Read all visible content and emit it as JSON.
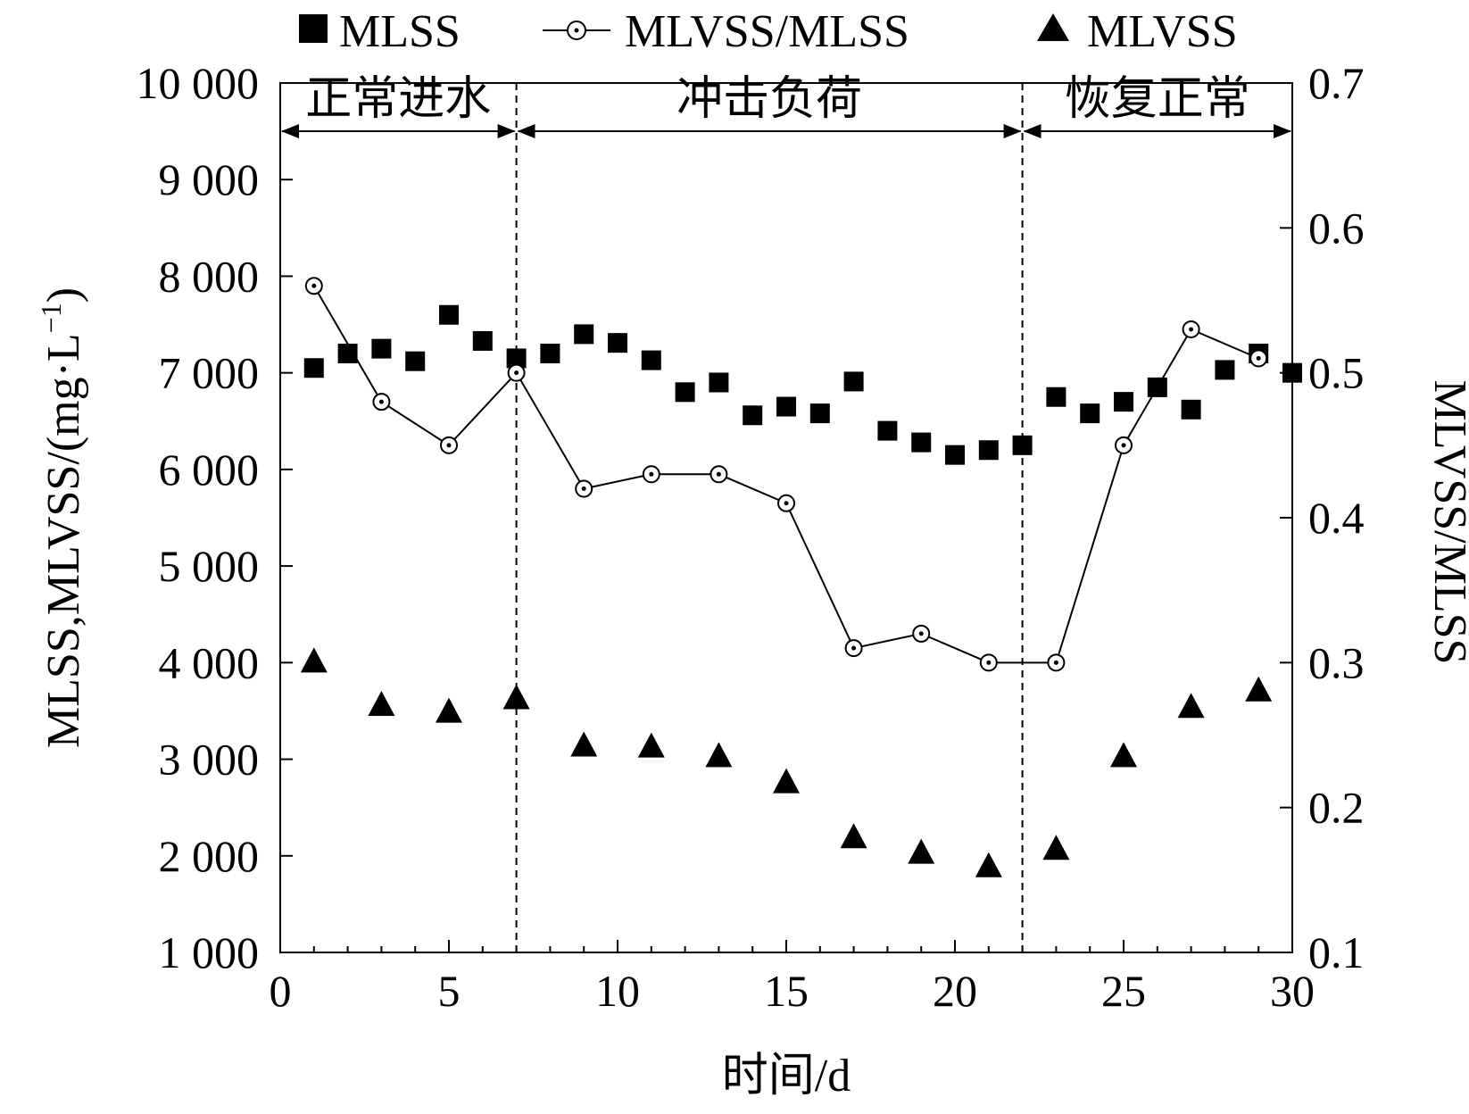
{
  "chart_data": {
    "type": "line",
    "xlabel": "时间/d",
    "ylabel_left": "MLSS,MLVSS/(mg·L",
    "ylabel_left_sup": "−1",
    "ylabel_left_end": ")",
    "ylabel_right": "MLVSS/MLSS",
    "xlim": [
      0,
      30
    ],
    "ylim_left": [
      1000,
      10000
    ],
    "ylim_right": [
      0.1,
      0.7
    ],
    "x_ticks": [
      0,
      5,
      10,
      15,
      20,
      25,
      30
    ],
    "x_tick_labels": [
      "0",
      "5",
      "10",
      "15",
      "20",
      "25",
      "30"
    ],
    "y_left_ticks": [
      1000,
      2000,
      3000,
      4000,
      5000,
      6000,
      7000,
      8000,
      9000,
      10000
    ],
    "y_left_tick_labels": [
      "1 000",
      "2 000",
      "3 000",
      "4 000",
      "5 000",
      "6 000",
      "7 000",
      "8 000",
      "9 000",
      "10 000"
    ],
    "y_right_ticks": [
      0.1,
      0.2,
      0.3,
      0.4,
      0.5,
      0.6,
      0.7
    ],
    "y_right_tick_labels": [
      "0.1",
      "0.2",
      "0.3",
      "0.4",
      "0.5",
      "0.6",
      "0.7"
    ],
    "grid": false,
    "legend_position": "top",
    "phases": [
      {
        "label": "正常进水",
        "start": 0,
        "end": 7
      },
      {
        "label": "冲击负荷",
        "start": 7,
        "end": 22
      },
      {
        "label": "恢复正常",
        "start": 22,
        "end": 30
      }
    ],
    "phase_dividers": [
      7,
      22
    ],
    "series": [
      {
        "name": "MLSS",
        "axis": "left",
        "marker": "square",
        "line": false,
        "x": [
          1,
          2,
          3,
          4,
          5,
          6,
          7,
          8,
          9,
          10,
          11,
          12,
          13,
          14,
          15,
          16,
          17,
          18,
          19,
          20,
          21,
          22,
          23,
          24,
          25,
          26,
          27,
          28,
          29,
          30
        ],
        "y": [
          7050,
          7200,
          7250,
          7120,
          7600,
          7330,
          7150,
          7200,
          7400,
          7310,
          7130,
          6800,
          6900,
          6560,
          6650,
          6580,
          6910,
          6400,
          6280,
          6150,
          6200,
          6250,
          6750,
          6580,
          6700,
          6850,
          6620,
          7030,
          7200,
          7000
        ]
      },
      {
        "name": "MLVSS/MLSS",
        "axis": "right",
        "marker": "circle-dot",
        "line": true,
        "x": [
          1,
          3,
          5,
          7,
          9,
          11,
          13,
          15,
          17,
          19,
          21,
          23,
          25,
          27,
          29
        ],
        "y": [
          0.56,
          0.48,
          0.45,
          0.5,
          0.42,
          0.43,
          0.43,
          0.41,
          0.31,
          0.32,
          0.3,
          0.3,
          0.45,
          0.53,
          0.51
        ]
      },
      {
        "name": "MLVSS",
        "axis": "left",
        "marker": "triangle",
        "line": false,
        "x": [
          1,
          3,
          5,
          7,
          9,
          11,
          13,
          15,
          17,
          19,
          21,
          23,
          25,
          27,
          29
        ],
        "y": [
          4000,
          3550,
          3480,
          3620,
          3130,
          3120,
          3020,
          2750,
          2180,
          2020,
          1880,
          2060,
          3020,
          3530,
          3700
        ]
      }
    ]
  }
}
